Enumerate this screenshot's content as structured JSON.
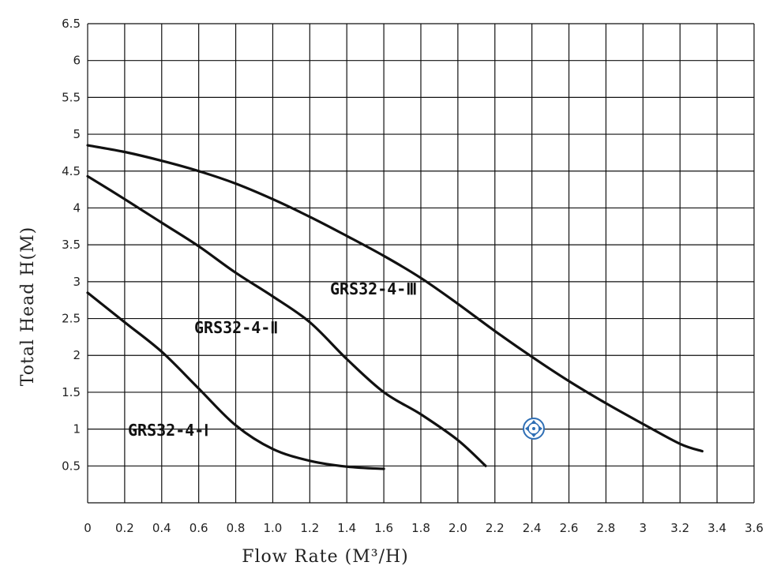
{
  "chart_data": {
    "type": "line",
    "xlabel": "Flow Rate (M³/H)",
    "ylabel": "Total Head H(M)",
    "xlim": [
      0,
      3.6
    ],
    "ylim": [
      0,
      6.5
    ],
    "grid": true,
    "x_ticks": [
      "0",
      "0.2",
      "0.4",
      "0.6",
      "0.8",
      "1.0",
      "1.2",
      "1.4",
      "1.6",
      "1.8",
      "2.0",
      "2.2",
      "2.4",
      "2.6",
      "2.8",
      "3",
      "3.2",
      "3.4",
      "3.6"
    ],
    "y_ticks": [
      "0.5",
      "1",
      "1.5",
      "2",
      "2.5",
      "3",
      "3.5",
      "4",
      "4.5",
      "5",
      "5.5",
      "6",
      "6.5"
    ],
    "series": [
      {
        "name": "GRS32-4-Ⅰ",
        "points": [
          [
            0,
            2.85
          ],
          [
            0.2,
            2.45
          ],
          [
            0.4,
            2.05
          ],
          [
            0.6,
            1.55
          ],
          [
            0.8,
            1.05
          ],
          [
            1.0,
            0.73
          ],
          [
            1.2,
            0.57
          ],
          [
            1.4,
            0.49
          ],
          [
            1.6,
            0.46
          ]
        ]
      },
      {
        "name": "GRS32-4-Ⅱ",
        "points": [
          [
            0,
            4.43
          ],
          [
            0.2,
            4.12
          ],
          [
            0.4,
            3.8
          ],
          [
            0.6,
            3.48
          ],
          [
            0.8,
            3.12
          ],
          [
            1.0,
            2.8
          ],
          [
            1.2,
            2.45
          ],
          [
            1.4,
            1.95
          ],
          [
            1.6,
            1.5
          ],
          [
            1.8,
            1.2
          ],
          [
            2.0,
            0.85
          ],
          [
            2.15,
            0.5
          ]
        ]
      },
      {
        "name": "GRS32-4-Ⅲ",
        "points": [
          [
            0,
            4.85
          ],
          [
            0.2,
            4.76
          ],
          [
            0.4,
            4.64
          ],
          [
            0.6,
            4.5
          ],
          [
            0.8,
            4.33
          ],
          [
            1.0,
            4.12
          ],
          [
            1.2,
            3.88
          ],
          [
            1.4,
            3.62
          ],
          [
            1.6,
            3.35
          ],
          [
            1.8,
            3.05
          ],
          [
            2.0,
            2.7
          ],
          [
            2.2,
            2.33
          ],
          [
            2.4,
            1.98
          ],
          [
            2.6,
            1.65
          ],
          [
            2.8,
            1.35
          ],
          [
            3.0,
            1.07
          ],
          [
            3.2,
            0.8
          ],
          [
            3.32,
            0.7
          ]
        ]
      }
    ],
    "annotations": [
      {
        "text": "GRS32-4-Ⅰ",
        "series": 0
      },
      {
        "text": "GRS32-4-Ⅱ",
        "series": 1
      },
      {
        "text": "GRS32-4-Ⅲ",
        "series": 2
      }
    ]
  },
  "icons": {
    "move_handle": "move-crosshair-icon",
    "move_handle_color": "#2f6fb5"
  }
}
